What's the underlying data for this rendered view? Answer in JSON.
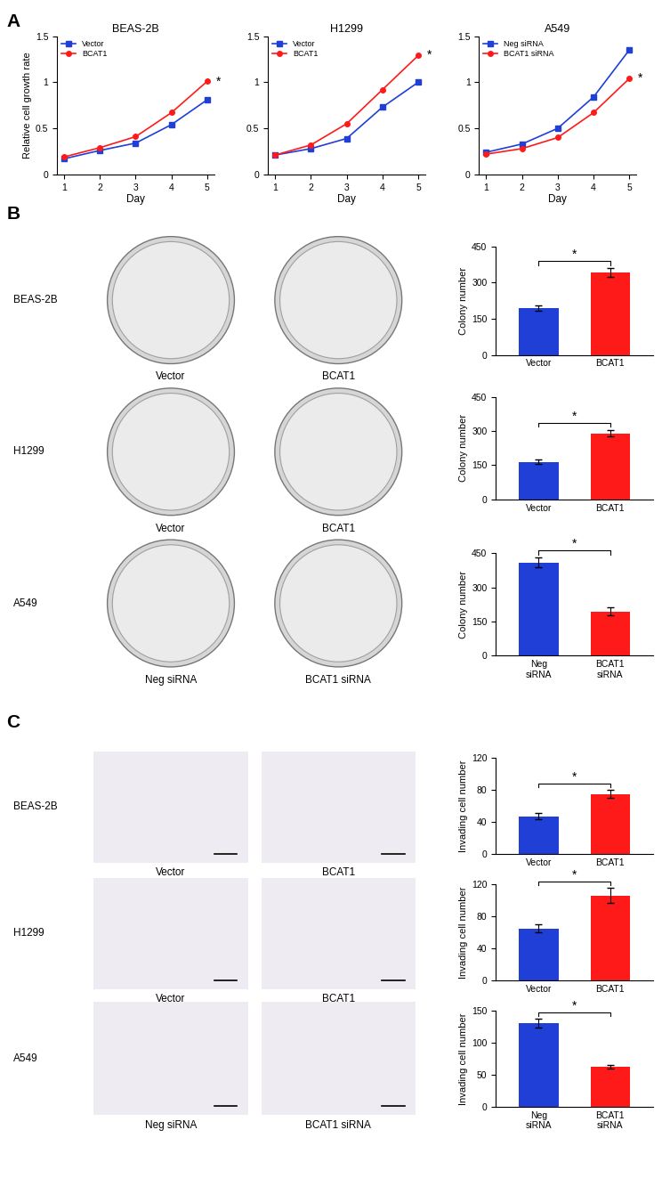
{
  "panel_labels": [
    "A",
    "B",
    "C"
  ],
  "chart_data": [
    {
      "type": "line",
      "title": "BEAS-2B",
      "x": [
        1,
        2,
        3,
        4,
        5
      ],
      "x_label": "Day",
      "y_label": "Relative cell growth rate",
      "xlim": [
        0.8,
        5.2
      ],
      "xticks": [
        1,
        2,
        3,
        4,
        5
      ],
      "ylim": [
        0,
        1.5
      ],
      "yticks": [
        0,
        0.5,
        1,
        1.5
      ],
      "legend": "upper left",
      "annotation": "*",
      "series": [
        {
          "name": "Vector",
          "color": "#1f3fd6",
          "marker": "square",
          "line_style": "solid",
          "values": [
            0.17,
            0.26,
            0.34,
            0.54,
            0.81
          ]
        },
        {
          "name": "BCAT1",
          "color": "#ff1a1a",
          "marker": "circle",
          "line_style": "solid",
          "values": [
            0.19,
            0.29,
            0.41,
            0.67,
            1.01
          ]
        }
      ]
    },
    {
      "type": "line",
      "title": "H1299",
      "x": [
        1,
        2,
        3,
        4,
        5
      ],
      "x_label": "Day",
      "xlim": [
        0.8,
        5.2
      ],
      "xticks": [
        1,
        2,
        3,
        4,
        5
      ],
      "ylim": [
        0,
        1.5
      ],
      "yticks": [
        0,
        0.5,
        1,
        1.5
      ],
      "legend": "upper left",
      "annotation": "*",
      "series": [
        {
          "name": "Vector",
          "color": "#1f3fd6",
          "marker": "square",
          "line_style": "solid",
          "values": [
            0.21,
            0.28,
            0.39,
            0.73,
            1.0
          ]
        },
        {
          "name": "BCAT1",
          "color": "#ff1a1a",
          "marker": "circle",
          "line_style": "solid",
          "values": [
            0.21,
            0.32,
            0.55,
            0.92,
            1.29
          ]
        }
      ]
    },
    {
      "type": "line",
      "title": "A549",
      "x": [
        1,
        2,
        3,
        4,
        5
      ],
      "x_label": "Day",
      "xlim": [
        0.8,
        5.2
      ],
      "xticks": [
        1,
        2,
        3,
        4,
        5
      ],
      "ylim": [
        0,
        1.5
      ],
      "yticks": [
        0,
        0.5,
        1,
        1.5
      ],
      "legend": "upper left",
      "annotation": "*",
      "series": [
        {
          "name": "Neg siRNA",
          "color": "#1f3fd6",
          "marker": "square",
          "line_style": "solid",
          "values": [
            0.24,
            0.33,
            0.5,
            0.84,
            1.35
          ]
        },
        {
          "name": "BCAT1 siRNA",
          "color": "#ff1a1a",
          "marker": "circle",
          "line_style": "solid",
          "values": [
            0.22,
            0.28,
            0.4,
            0.67,
            1.04
          ]
        }
      ]
    },
    {
      "type": "bar",
      "categories": [
        "Vector",
        "BCAT1"
      ],
      "values": [
        195,
        342
      ],
      "errors": [
        12,
        18
      ],
      "colors": [
        "#1f3fd6",
        "#ff1a1a"
      ],
      "y_label": "Colony number",
      "ylim": [
        0,
        450
      ],
      "yticks": [
        0,
        150,
        300,
        450
      ],
      "annotation": "*"
    },
    {
      "type": "bar",
      "categories": [
        "Vector",
        "BCAT1"
      ],
      "values": [
        165,
        290
      ],
      "errors": [
        10,
        15
      ],
      "colors": [
        "#1f3fd6",
        "#ff1a1a"
      ],
      "y_label": "Colony number",
      "ylim": [
        0,
        450
      ],
      "yticks": [
        0,
        150,
        300,
        450
      ],
      "annotation": "*"
    },
    {
      "type": "bar",
      "categories": [
        "Neg\nsiRNA",
        "BCAT1\nsiRNA"
      ],
      "values": [
        410,
        195
      ],
      "errors": [
        22,
        18
      ],
      "colors": [
        "#1f3fd6",
        "#ff1a1a"
      ],
      "y_label": "Colony number",
      "ylim": [
        0,
        450
      ],
      "yticks": [
        0,
        150,
        300,
        450
      ],
      "annotation": "*"
    },
    {
      "type": "bar",
      "categories": [
        "Vector",
        "BCAT1"
      ],
      "values": [
        47,
        75
      ],
      "errors": [
        4,
        5
      ],
      "colors": [
        "#1f3fd6",
        "#ff1a1a"
      ],
      "y_label": "Invading cell number",
      "ylim": [
        0,
        120
      ],
      "yticks": [
        0,
        40,
        80,
        120
      ],
      "annotation": "*"
    },
    {
      "type": "bar",
      "categories": [
        "Vector",
        "BCAT1"
      ],
      "values": [
        65,
        106
      ],
      "errors": [
        5,
        9
      ],
      "colors": [
        "#1f3fd6",
        "#ff1a1a"
      ],
      "y_label": "Invading cell number",
      "ylim": [
        0,
        120
      ],
      "yticks": [
        0,
        40,
        80,
        120
      ],
      "annotation": "*"
    },
    {
      "type": "bar",
      "categories": [
        "Neg\nsiRNA",
        "BCAT1\nsiRNA"
      ],
      "values": [
        130,
        62
      ],
      "errors": [
        7,
        3
      ],
      "colors": [
        "#1f3fd6",
        "#ff1a1a"
      ],
      "y_label": "Invading cell number",
      "ylim": [
        0,
        150
      ],
      "yticks": [
        0,
        50,
        100,
        150
      ],
      "annotation": "*"
    }
  ],
  "image_rows": [
    {
      "row_label": "BEAS-2B",
      "captions": [
        "Vector",
        "BCAT1"
      ]
    },
    {
      "row_label": "H1299",
      "captions": [
        "Vector",
        "BCAT1"
      ]
    },
    {
      "row_label": "A549",
      "captions": [
        "Neg siRNA",
        "BCAT1 siRNA"
      ]
    },
    {
      "row_label": "BEAS-2B",
      "captions": [
        "Vector",
        "BCAT1"
      ]
    },
    {
      "row_label": "H1299",
      "captions": [
        "Vector",
        "BCAT1"
      ]
    },
    {
      "row_label": "A549",
      "captions": [
        "Neg siRNA",
        "BCAT1 siRNA"
      ]
    }
  ]
}
